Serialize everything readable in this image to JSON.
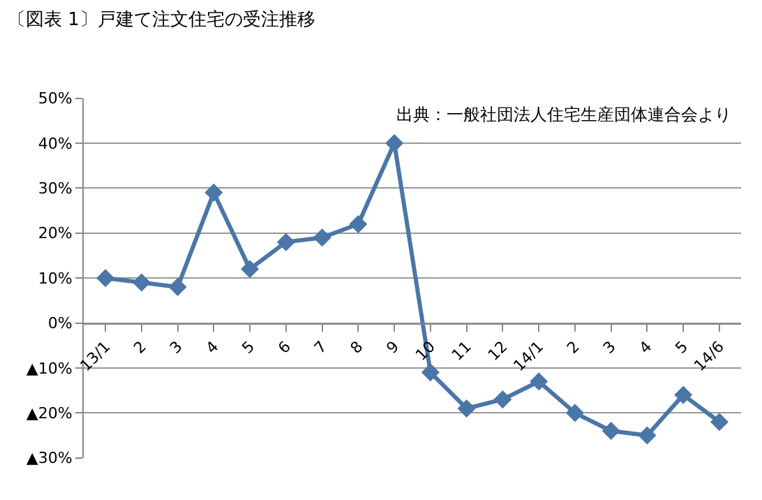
{
  "chart_data": {
    "type": "line",
    "title": "〔図表 1〕戸建て注文住宅の受注推移",
    "categories": [
      "13/1",
      "2",
      "3",
      "4",
      "5",
      "6",
      "7",
      "8",
      "9",
      "10",
      "11",
      "12",
      "14/1",
      "2",
      "3",
      "4",
      "5",
      "14/6"
    ],
    "series": [
      {
        "color": "#4a76a8",
        "values": [
          10,
          9,
          8,
          29,
          12,
          18,
          19,
          22,
          40,
          -11,
          -19,
          -17,
          -13,
          -20,
          -24,
          -25,
          -16,
          -22
        ]
      }
    ],
    "ylim": [
      -30,
      50
    ],
    "yticks": [
      {
        "value": -30,
        "label": "▲30%"
      },
      {
        "value": -20,
        "label": "▲20%"
      },
      {
        "value": -10,
        "label": "▲10%"
      },
      {
        "value": 0,
        "label": "0%"
      },
      {
        "value": 10,
        "label": "10%"
      },
      {
        "value": 20,
        "label": "20%"
      },
      {
        "value": 30,
        "label": "30%"
      },
      {
        "value": 40,
        "label": "40%"
      },
      {
        "value": 50,
        "label": "50%"
      }
    ],
    "grid": "y",
    "marker": "diamond",
    "line_style": "solid",
    "legend": false,
    "annotations": [
      "出典：一般社団法人住宅生産団体連合会より"
    ]
  }
}
